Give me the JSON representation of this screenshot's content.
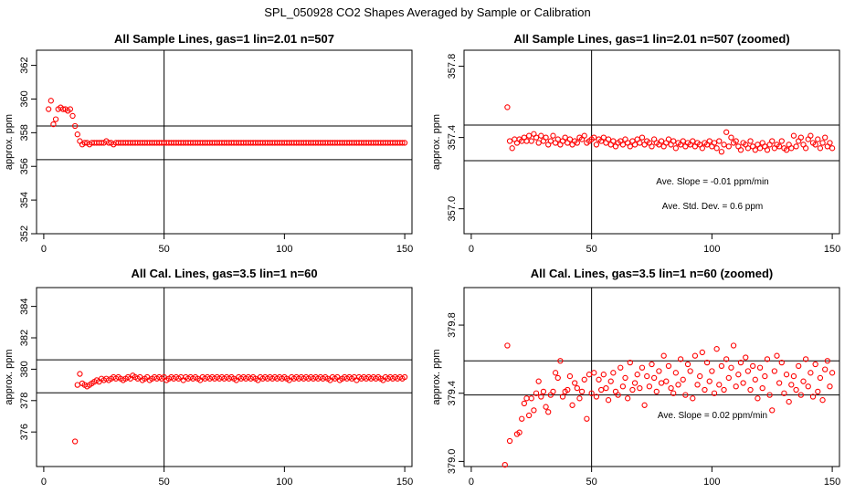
{
  "suptitle": "SPL_050928  CO2 Shapes Averaged by Sample or Calibration",
  "marker_color": "#ff0000",
  "chart_data": [
    {
      "type": "scatter",
      "title": "All Sample Lines, gas=1 lin=2.01 n=507",
      "ylabel": "approx. ppm",
      "xlim": [
        -3,
        153
      ],
      "ylim": [
        352,
        362.9
      ],
      "xticks": [
        0,
        50,
        100,
        150
      ],
      "yticks": [
        352,
        354,
        356,
        358,
        360,
        362
      ],
      "hlines": [
        358.4,
        356.4
      ],
      "vline": 50,
      "annotations": [],
      "x": [
        2,
        3,
        4,
        5,
        6,
        7,
        8,
        9,
        10,
        11,
        12,
        13,
        14,
        15,
        16,
        17,
        18,
        19,
        20,
        21,
        22,
        23,
        24,
        25,
        26,
        27,
        28,
        29,
        30,
        31,
        32,
        33,
        34,
        35,
        36,
        37,
        38,
        39,
        40,
        41,
        42,
        43,
        44,
        45,
        46,
        47,
        48,
        49,
        50,
        51,
        52,
        53,
        54,
        55,
        56,
        57,
        58,
        59,
        60,
        61,
        62,
        63,
        64,
        65,
        66,
        67,
        68,
        69,
        70,
        71,
        72,
        73,
        74,
        75,
        76,
        77,
        78,
        79,
        80,
        81,
        82,
        83,
        84,
        85,
        86,
        87,
        88,
        89,
        90,
        91,
        92,
        93,
        94,
        95,
        96,
        97,
        98,
        99,
        100,
        101,
        102,
        103,
        104,
        105,
        106,
        107,
        108,
        109,
        110,
        111,
        112,
        113,
        114,
        115,
        116,
        117,
        118,
        119,
        120,
        121,
        122,
        123,
        124,
        125,
        126,
        127,
        128,
        129,
        130,
        131,
        132,
        133,
        134,
        135,
        136,
        137,
        138,
        139,
        140,
        141,
        142,
        143,
        144,
        145,
        146,
        147,
        148,
        149,
        150
      ],
      "y": [
        359.4,
        359.9,
        358.5,
        358.8,
        359.4,
        359.5,
        359.4,
        359.4,
        359.3,
        359.4,
        359.0,
        358.4,
        357.9,
        357.5,
        357.3,
        357.4,
        357.4,
        357.3,
        357.4,
        357.4,
        357.4,
        357.4,
        357.4,
        357.4,
        357.5,
        357.4,
        357.4,
        357.3,
        357.4,
        357.4,
        357.4,
        357.4,
        357.4,
        357.4,
        357.4,
        357.4,
        357.4,
        357.4,
        357.4,
        357.4,
        357.4,
        357.4,
        357.4,
        357.4,
        357.4,
        357.4,
        357.4,
        357.4,
        357.4,
        357.4,
        357.4,
        357.4,
        357.4,
        357.4,
        357.4,
        357.4,
        357.4,
        357.4,
        357.4,
        357.4,
        357.4,
        357.4,
        357.4,
        357.4,
        357.4,
        357.4,
        357.4,
        357.4,
        357.4,
        357.4,
        357.4,
        357.4,
        357.4,
        357.4,
        357.4,
        357.4,
        357.4,
        357.4,
        357.4,
        357.4,
        357.4,
        357.4,
        357.4,
        357.4,
        357.4,
        357.4,
        357.4,
        357.4,
        357.4,
        357.4,
        357.4,
        357.4,
        357.4,
        357.4,
        357.4,
        357.4,
        357.4,
        357.4,
        357.4,
        357.4,
        357.4,
        357.4,
        357.4,
        357.4,
        357.4,
        357.4,
        357.4,
        357.4,
        357.4,
        357.4,
        357.4,
        357.4,
        357.4,
        357.4,
        357.4,
        357.4,
        357.4,
        357.4,
        357.4,
        357.4,
        357.4,
        357.4,
        357.4,
        357.4,
        357.4,
        357.4,
        357.4,
        357.4,
        357.4,
        357.4,
        357.4,
        357.4,
        357.4,
        357.4,
        357.4,
        357.4,
        357.4,
        357.4,
        357.4,
        357.4,
        357.4,
        357.4,
        357.4,
        357.4,
        357.4,
        357.4,
        357.4,
        357.4,
        357.4
      ]
    },
    {
      "type": "scatter",
      "title": "All Sample Lines, gas=1 lin=2.01 n=507 (zoomed)",
      "ylabel": "approx. ppm",
      "xlim": [
        -3,
        153
      ],
      "ylim": [
        356.86,
        357.89
      ],
      "xticks": [
        0,
        50,
        100,
        150
      ],
      "yticks": [
        357.0,
        357.4,
        357.8
      ],
      "ytick_labels": [
        "357.0",
        "357.4",
        "357.8"
      ],
      "hlines": [
        357.47,
        357.27
      ],
      "vline": 50,
      "annotations": [
        "Ave. Slope =  -0.01  ppm/min",
        "Ave. Std. Dev. =  0.6  ppm"
      ],
      "x": [
        15,
        16,
        17,
        18,
        19,
        20,
        21,
        22,
        23,
        24,
        25,
        26,
        27,
        28,
        29,
        30,
        31,
        32,
        33,
        34,
        35,
        36,
        37,
        38,
        39,
        40,
        41,
        42,
        43,
        44,
        45,
        46,
        47,
        48,
        49,
        50,
        51,
        52,
        53,
        54,
        55,
        56,
        57,
        58,
        59,
        60,
        61,
        62,
        63,
        64,
        65,
        66,
        67,
        68,
        69,
        70,
        71,
        72,
        73,
        74,
        75,
        76,
        77,
        78,
        79,
        80,
        81,
        82,
        83,
        84,
        85,
        86,
        87,
        88,
        89,
        90,
        91,
        92,
        93,
        94,
        95,
        96,
        97,
        98,
        99,
        100,
        101,
        102,
        103,
        104,
        105,
        106,
        107,
        108,
        109,
        110,
        111,
        112,
        113,
        114,
        115,
        116,
        117,
        118,
        119,
        120,
        121,
        122,
        123,
        124,
        125,
        126,
        127,
        128,
        129,
        130,
        131,
        132,
        133,
        134,
        135,
        136,
        137,
        138,
        139,
        140,
        141,
        142,
        143,
        144,
        145,
        146,
        147,
        148,
        149,
        150
      ],
      "y": [
        357.57,
        357.38,
        357.34,
        357.39,
        357.37,
        357.39,
        357.38,
        357.4,
        357.38,
        357.41,
        357.38,
        357.42,
        357.4,
        357.37,
        357.41,
        357.38,
        357.4,
        357.36,
        357.38,
        357.41,
        357.37,
        357.39,
        357.36,
        357.38,
        357.4,
        357.37,
        357.39,
        357.36,
        357.38,
        357.37,
        357.4,
        357.39,
        357.41,
        357.37,
        357.38,
        357.39,
        357.4,
        357.36,
        357.39,
        357.38,
        357.4,
        357.37,
        357.39,
        357.36,
        357.38,
        357.35,
        357.37,
        357.38,
        357.36,
        357.39,
        357.37,
        357.35,
        357.38,
        357.36,
        357.39,
        357.37,
        357.4,
        357.36,
        357.38,
        357.37,
        357.35,
        357.39,
        357.37,
        357.36,
        357.38,
        357.35,
        357.37,
        357.39,
        357.36,
        357.38,
        357.34,
        357.37,
        357.36,
        357.38,
        357.35,
        357.37,
        357.36,
        357.38,
        357.35,
        357.37,
        357.36,
        357.34,
        357.37,
        357.36,
        357.38,
        357.35,
        357.37,
        357.34,
        357.38,
        357.32,
        357.36,
        357.43,
        357.35,
        357.4,
        357.37,
        357.38,
        357.35,
        357.33,
        357.37,
        357.36,
        357.34,
        357.38,
        357.35,
        357.33,
        357.36,
        357.34,
        357.37,
        357.35,
        357.33,
        357.36,
        357.38,
        357.34,
        357.36,
        357.35,
        357.38,
        357.34,
        357.33,
        357.36,
        357.34,
        357.41,
        357.35,
        357.38,
        357.4,
        357.36,
        357.34,
        357.39,
        357.41,
        357.37,
        357.36,
        357.39,
        357.34,
        357.37,
        357.4,
        357.35,
        357.37,
        357.34
      ],
      "y_unit": "approx. ppm"
    },
    {
      "type": "scatter",
      "title": "All Cal. Lines, gas=3.5 lin=1 n=60",
      "ylabel": "approx. ppm",
      "xlim": [
        -3,
        153
      ],
      "ylim": [
        373.8,
        385.2
      ],
      "xticks": [
        0,
        50,
        100,
        150
      ],
      "yticks": [
        376,
        378,
        380,
        382,
        384
      ],
      "hlines": [
        380.6,
        378.5
      ],
      "vline": 50,
      "annotations": [],
      "x": [
        13,
        14,
        15,
        16,
        17,
        18,
        19,
        20,
        21,
        22,
        23,
        24,
        25,
        26,
        27,
        28,
        29,
        30,
        31,
        32,
        33,
        34,
        35,
        36,
        37,
        38,
        39,
        40,
        41,
        42,
        43,
        44,
        45,
        46,
        47,
        48,
        49,
        50,
        51,
        52,
        53,
        54,
        55,
        56,
        57,
        58,
        59,
        60,
        61,
        62,
        63,
        64,
        65,
        66,
        67,
        68,
        69,
        70,
        71,
        72,
        73,
        74,
        75,
        76,
        77,
        78,
        79,
        80,
        81,
        82,
        83,
        84,
        85,
        86,
        87,
        88,
        89,
        90,
        91,
        92,
        93,
        94,
        95,
        96,
        97,
        98,
        99,
        100,
        101,
        102,
        103,
        104,
        105,
        106,
        107,
        108,
        109,
        110,
        111,
        112,
        113,
        114,
        115,
        116,
        117,
        118,
        119,
        120,
        121,
        122,
        123,
        124,
        125,
        126,
        127,
        128,
        129,
        130,
        131,
        132,
        133,
        134,
        135,
        136,
        137,
        138,
        139,
        140,
        141,
        142,
        143,
        144,
        145,
        146,
        147,
        148,
        149,
        150
      ],
      "y": [
        375.4,
        379.0,
        379.7,
        379.1,
        379.0,
        378.9,
        379.0,
        379.1,
        379.2,
        379.3,
        379.2,
        379.4,
        379.3,
        379.4,
        379.3,
        379.4,
        379.5,
        379.4,
        379.5,
        379.4,
        379.3,
        379.4,
        379.5,
        379.4,
        379.6,
        379.5,
        379.4,
        379.5,
        379.3,
        379.4,
        379.5,
        379.3,
        379.4,
        379.5,
        379.4,
        379.5,
        379.4,
        379.5,
        379.3,
        379.4,
        379.5,
        379.4,
        379.5,
        379.4,
        379.5,
        379.3,
        379.5,
        379.4,
        379.5,
        379.4,
        379.5,
        379.4,
        379.3,
        379.5,
        379.4,
        379.5,
        379.4,
        379.5,
        379.4,
        379.5,
        379.4,
        379.5,
        379.4,
        379.5,
        379.4,
        379.5,
        379.4,
        379.3,
        379.5,
        379.4,
        379.5,
        379.4,
        379.5,
        379.4,
        379.5,
        379.4,
        379.3,
        379.5,
        379.4,
        379.5,
        379.4,
        379.5,
        379.4,
        379.5,
        379.4,
        379.5,
        379.4,
        379.5,
        379.4,
        379.3,
        379.5,
        379.4,
        379.5,
        379.4,
        379.5,
        379.4,
        379.5,
        379.4,
        379.5,
        379.4,
        379.5,
        379.4,
        379.5,
        379.4,
        379.5,
        379.4,
        379.3,
        379.5,
        379.4,
        379.5,
        379.3,
        379.4,
        379.5,
        379.4,
        379.5,
        379.4,
        379.5,
        379.3,
        379.5,
        379.4,
        379.5,
        379.4,
        379.5,
        379.4,
        379.5,
        379.4,
        379.5,
        379.4,
        379.3,
        379.5,
        379.4,
        379.5,
        379.4,
        379.5,
        379.4,
        379.5,
        379.4,
        379.5
      ]
    },
    {
      "type": "scatter",
      "title": "All Cal. Lines, gas=3.5 lin=1 n=60 (zoomed)",
      "ylabel": "approx. ppm",
      "xlim": [
        -3,
        153
      ],
      "ylim": [
        378.97,
        380.02
      ],
      "xticks": [
        0,
        50,
        100,
        150
      ],
      "yticks": [
        379.0,
        379.4,
        379.8
      ],
      "ytick_labels": [
        "379.0",
        "379.4",
        "379.8"
      ],
      "hlines": [
        379.59,
        379.39
      ],
      "vline": 50,
      "annotations": [
        "Ave. Slope =  0.02  ppm/min"
      ],
      "x": [
        14,
        15,
        16,
        19,
        20,
        21,
        22,
        23,
        24,
        25,
        26,
        27,
        28,
        29,
        30,
        31,
        32,
        33,
        34,
        35,
        36,
        37,
        38,
        39,
        40,
        41,
        42,
        43,
        44,
        45,
        46,
        47,
        48,
        49,
        50,
        51,
        52,
        53,
        54,
        55,
        56,
        57,
        58,
        59,
        60,
        61,
        62,
        63,
        64,
        65,
        66,
        67,
        68,
        69,
        70,
        71,
        72,
        73,
        74,
        75,
        76,
        77,
        78,
        79,
        80,
        81,
        82,
        83,
        84,
        85,
        86,
        87,
        88,
        89,
        90,
        91,
        92,
        93,
        94,
        95,
        96,
        97,
        98,
        99,
        100,
        101,
        102,
        103,
        104,
        105,
        106,
        107,
        108,
        109,
        110,
        111,
        112,
        113,
        114,
        115,
        116,
        117,
        118,
        119,
        120,
        121,
        122,
        123,
        124,
        125,
        126,
        127,
        128,
        129,
        130,
        131,
        132,
        133,
        134,
        135,
        136,
        137,
        138,
        139,
        140,
        141,
        142,
        143,
        144,
        145,
        146,
        147,
        148,
        149,
        150
      ],
      "y": [
        378.98,
        379.68,
        379.12,
        379.16,
        379.17,
        379.25,
        379.34,
        379.37,
        379.27,
        379.37,
        379.3,
        379.4,
        379.47,
        379.38,
        379.41,
        379.32,
        379.29,
        379.39,
        379.41,
        379.52,
        379.49,
        379.59,
        379.38,
        379.41,
        379.42,
        379.5,
        379.33,
        379.46,
        379.43,
        379.37,
        379.41,
        379.48,
        379.25,
        379.51,
        379.4,
        379.52,
        379.38,
        379.48,
        379.42,
        379.51,
        379.43,
        379.36,
        379.47,
        379.52,
        379.41,
        379.39,
        379.55,
        379.44,
        379.49,
        379.37,
        379.58,
        379.42,
        379.46,
        379.51,
        379.43,
        379.55,
        379.33,
        379.5,
        379.44,
        379.57,
        379.49,
        379.41,
        379.53,
        379.46,
        379.62,
        379.47,
        379.56,
        379.43,
        379.4,
        379.52,
        379.45,
        379.6,
        379.48,
        379.39,
        379.57,
        379.53,
        379.37,
        379.62,
        379.45,
        379.5,
        379.64,
        379.42,
        379.58,
        379.47,
        379.53,
        379.4,
        379.66,
        379.45,
        379.56,
        379.42,
        379.6,
        379.49,
        379.55,
        379.68,
        379.44,
        379.51,
        379.58,
        379.46,
        379.61,
        379.53,
        379.42,
        379.56,
        379.48,
        379.37,
        379.55,
        379.43,
        379.5,
        379.6,
        379.39,
        379.3,
        379.53,
        379.62,
        379.46,
        379.58,
        379.4,
        379.51,
        379.35,
        379.45,
        379.5,
        379.42,
        379.56,
        379.39,
        379.47,
        379.6,
        379.44,
        379.52,
        379.38,
        379.57,
        379.41,
        379.49,
        379.36,
        379.54,
        379.59,
        379.44,
        379.52
      ]
    }
  ]
}
